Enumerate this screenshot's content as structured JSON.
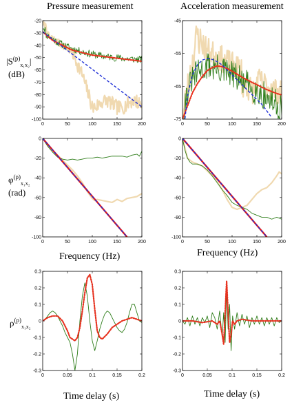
{
  "column_titles": [
    "Pressure measurement",
    "Acceleration measurement"
  ],
  "row_labels": {
    "row1_symbol": "|S",
    "row1_sup": "(p)",
    "row1_sub": "x₁x₂",
    "row1_close": "|",
    "row1_unit": "(dB)",
    "row2_symbol": "φ",
    "row2_sup": "(p)",
    "row2_sub": "x₁x₂",
    "row2_unit": "(rad)",
    "row3_symbol": "ρ",
    "row3_sup": "(p)",
    "row3_sub": "x₁x₂"
  },
  "colors": {
    "green": "#2e7d1a",
    "tan": "#f0d9b0",
    "blue": "#1f2fd6",
    "red": "#e51a1a",
    "red_dotted": "#e8321e"
  },
  "chart_data": [
    {
      "id": "p11",
      "type": "line",
      "xlim": [
        0,
        200
      ],
      "ylim": [
        -100,
        -20
      ],
      "xticks": [
        0,
        50,
        100,
        150,
        200
      ],
      "yticks": [
        -20,
        -30,
        -40,
        -50,
        -60,
        -70,
        -80,
        -90,
        -100
      ],
      "xlabel": "",
      "ylabel": "",
      "series": [
        {
          "style": "tan",
          "kind": "pressure_mag_tan"
        },
        {
          "style": "green",
          "kind": "pressure_mag_green"
        },
        {
          "style": "red_dotted",
          "x": [
            0,
            20,
            40,
            60,
            80,
            100,
            120,
            140,
            160,
            180,
            200
          ],
          "y": [
            -29,
            -36,
            -40,
            -44,
            -46,
            -48,
            -49,
            -50,
            -51,
            -52,
            -53
          ]
        },
        {
          "style": "blue_dashed",
          "x": [
            0,
            200
          ],
          "y": [
            -29,
            -90
          ]
        }
      ]
    },
    {
      "id": "p12",
      "type": "line",
      "xlim": [
        0,
        200
      ],
      "ylim": [
        -75,
        -45
      ],
      "xticks": [
        0,
        50,
        100,
        150,
        200
      ],
      "yticks": [
        -45,
        -55,
        -65,
        -75
      ],
      "xlabel": "",
      "ylabel": "",
      "series": [
        {
          "style": "tan",
          "kind": "accel_mag_tan"
        },
        {
          "style": "green",
          "kind": "accel_mag_green"
        },
        {
          "style": "red_dotted",
          "x": [
            0,
            10,
            20,
            30,
            40,
            50,
            60,
            70,
            80,
            90,
            100,
            110,
            120,
            130,
            140,
            150,
            160,
            170,
            180,
            190,
            200
          ],
          "y": [
            -75,
            -71,
            -67,
            -64.2,
            -62,
            -60.2,
            -59.3,
            -58.8,
            -59,
            -59.6,
            -60.4,
            -61.3,
            -62.2,
            -63,
            -63.8,
            -64.5,
            -65.3,
            -66,
            -66.6,
            -67.2,
            -67.6
          ]
        },
        {
          "style": "blue_dashed",
          "x": [
            0,
            5,
            10,
            20,
            30,
            40,
            50,
            60,
            70,
            80,
            90,
            100,
            120,
            140,
            160,
            170,
            180
          ],
          "y": [
            -83,
            -75,
            -68,
            -61.5,
            -58.5,
            -57,
            -56.5,
            -56.8,
            -57.5,
            -58.5,
            -60,
            -61.5,
            -64.5,
            -67.5,
            -70.5,
            -72.5,
            -74.5
          ]
        }
      ]
    },
    {
      "id": "p21",
      "type": "line",
      "xlim": [
        0,
        200
      ],
      "ylim": [
        -100,
        0
      ],
      "xticks": [
        0,
        50,
        100,
        150,
        200
      ],
      "yticks": [
        0,
        -20,
        -40,
        -60,
        -80,
        -100
      ],
      "xlabel": "Frequency (Hz)",
      "ylabel": "",
      "series": [
        {
          "style": "tan",
          "x": [
            0,
            10,
            20,
            30,
            40,
            50,
            60,
            70,
            80,
            90,
            100,
            105,
            110,
            120,
            130,
            140,
            150,
            160,
            170,
            180,
            190,
            200
          ],
          "y": [
            0,
            -6,
            -12,
            -17,
            -22,
            -27,
            -32,
            -38,
            -45,
            -54,
            -61,
            -63,
            -62,
            -63,
            -64,
            -65,
            -62,
            -64,
            -61,
            -60,
            -59,
            -56
          ]
        },
        {
          "style": "green",
          "x": [
            0,
            5,
            10,
            20,
            30,
            40,
            50,
            60,
            70,
            80,
            90,
            100,
            110,
            120,
            130,
            140,
            150,
            160,
            170,
            180,
            190,
            195,
            200
          ],
          "y": [
            0,
            -4,
            -8,
            -14,
            -19,
            -21,
            -22,
            -21,
            -22,
            -21,
            -20,
            -20,
            -19,
            -20,
            -19,
            -18,
            -18,
            -18,
            -19,
            -17,
            -16,
            -18,
            -13
          ]
        },
        {
          "style": "red_solid",
          "x": [
            0,
            170
          ],
          "y": [
            0,
            -100
          ]
        },
        {
          "style": "blue_dashed",
          "x": [
            0,
            170
          ],
          "y": [
            0,
            -100
          ]
        }
      ]
    },
    {
      "id": "p22",
      "type": "line",
      "xlim": [
        0,
        200
      ],
      "ylim": [
        -100,
        0
      ],
      "xticks": [
        0,
        50,
        100,
        150,
        200
      ],
      "yticks": [
        0,
        -20,
        -40,
        -60,
        -80,
        -100
      ],
      "xlabel": "Frequency (Hz)",
      "ylabel": "",
      "series": [
        {
          "style": "tan",
          "x": [
            0,
            5,
            10,
            15,
            20,
            30,
            40,
            50,
            60,
            70,
            80,
            90,
            100,
            110,
            120,
            130,
            140,
            150,
            160,
            170,
            180,
            190,
            195,
            200
          ],
          "y": [
            0,
            -10,
            -20,
            -22,
            -24,
            -26,
            -28,
            -33,
            -38,
            -44,
            -52,
            -62,
            -70,
            -72,
            -70,
            -68,
            -62,
            -56,
            -52,
            -50,
            -45,
            -38,
            -34,
            -36
          ]
        },
        {
          "style": "green",
          "x": [
            0,
            5,
            10,
            15,
            20,
            30,
            40,
            50,
            60,
            70,
            80,
            90,
            100,
            110,
            120,
            130,
            140,
            150,
            160,
            170,
            180,
            190,
            200
          ],
          "y": [
            0,
            -12,
            -20,
            -24,
            -26,
            -26,
            -28,
            -32,
            -38,
            -45,
            -52,
            -58,
            -65,
            -68,
            -70,
            -72,
            -76,
            -78,
            -80,
            -80,
            -82,
            -80,
            -82
          ]
        },
        {
          "style": "red_solid",
          "x": [
            0,
            170
          ],
          "y": [
            0,
            -100
          ]
        },
        {
          "style": "blue_dashed",
          "x": [
            0,
            170
          ],
          "y": [
            0,
            -100
          ]
        }
      ]
    },
    {
      "id": "p31",
      "type": "line",
      "xlim": [
        0,
        0.2
      ],
      "ylim": [
        -0.3,
        0.3
      ],
      "xticks": [
        0,
        0.05,
        0.1,
        0.15,
        0.2
      ],
      "yticks": [
        0.3,
        0.2,
        0.1,
        0,
        -0.1,
        -0.2,
        -0.3
      ],
      "xlabel": "Time delay (s)",
      "ylabel": "",
      "series": [
        {
          "style": "green",
          "x": [
            0,
            0.005,
            0.01,
            0.015,
            0.02,
            0.025,
            0.03,
            0.035,
            0.04,
            0.045,
            0.05,
            0.055,
            0.06,
            0.065,
            0.07,
            0.075,
            0.08,
            0.085,
            0.09,
            0.095,
            0.1,
            0.105,
            0.11,
            0.115,
            0.12,
            0.125,
            0.13,
            0.135,
            0.14,
            0.145,
            0.15,
            0.155,
            0.16,
            0.165,
            0.17,
            0.175,
            0.18,
            0.185,
            0.19,
            0.195,
            0.2
          ],
          "y": [
            0,
            0.01,
            0.03,
            0.05,
            0.06,
            0.05,
            0.03,
            0.0,
            -0.03,
            -0.07,
            -0.1,
            -0.13,
            -0.2,
            -0.3,
            -0.2,
            0.0,
            0.15,
            0.23,
            0.15,
            0.0,
            -0.12,
            -0.18,
            -0.12,
            -0.05,
            0.0,
            0.04,
            0.06,
            0.05,
            0.02,
            -0.01,
            -0.04,
            -0.06,
            -0.07,
            -0.05,
            -0.01,
            0.05,
            0.1,
            0.1,
            0.05,
            0.0,
            -0.01
          ]
        },
        {
          "style": "blue_dashed",
          "x": [
            0,
            0.01,
            0.02,
            0.03,
            0.04,
            0.05,
            0.055,
            0.06,
            0.065,
            0.07,
            0.075,
            0.08,
            0.085,
            0.09,
            0.095,
            0.1,
            0.105,
            0.11,
            0.115,
            0.12,
            0.13,
            0.14,
            0.15,
            0.16,
            0.17,
            0.18,
            0.19,
            0.2
          ],
          "y": [
            0.0,
            0.02,
            0.03,
            0.03,
            0.0,
            -0.06,
            -0.1,
            -0.11,
            -0.12,
            -0.1,
            -0.04,
            0.06,
            0.17,
            0.26,
            0.28,
            0.22,
            0.07,
            -0.06,
            -0.1,
            -0.11,
            -0.08,
            -0.04,
            -0.02,
            0.0,
            0.01,
            0.02,
            0.01,
            0.0
          ]
        },
        {
          "style": "red_dotted",
          "x": [
            0,
            0.01,
            0.02,
            0.03,
            0.04,
            0.05,
            0.055,
            0.06,
            0.065,
            0.07,
            0.075,
            0.08,
            0.085,
            0.09,
            0.095,
            0.1,
            0.105,
            0.11,
            0.115,
            0.12,
            0.13,
            0.14,
            0.15,
            0.16,
            0.17,
            0.18,
            0.19,
            0.2
          ],
          "y": [
            0.0,
            0.02,
            0.03,
            0.03,
            0.0,
            -0.06,
            -0.1,
            -0.11,
            -0.12,
            -0.1,
            -0.04,
            0.06,
            0.17,
            0.26,
            0.28,
            0.22,
            0.07,
            -0.06,
            -0.1,
            -0.11,
            -0.08,
            -0.04,
            -0.02,
            0.0,
            0.01,
            0.02,
            0.01,
            0.0
          ]
        }
      ]
    },
    {
      "id": "p32",
      "type": "line",
      "xlim": [
        0,
        0.2
      ],
      "ylim": [
        -0.3,
        0.3
      ],
      "xticks": [
        0,
        0.05,
        0.1,
        0.15,
        0.2
      ],
      "yticks": [
        0.3,
        0.2,
        0.1,
        0,
        -0.1,
        -0.2,
        -0.3
      ],
      "xlabel": "Time delay (s)",
      "ylabel": "",
      "series": [
        {
          "style": "green",
          "x": [
            0,
            0.005,
            0.01,
            0.015,
            0.02,
            0.025,
            0.03,
            0.035,
            0.04,
            0.045,
            0.05,
            0.055,
            0.06,
            0.065,
            0.07,
            0.075,
            0.08,
            0.083,
            0.086,
            0.089,
            0.092,
            0.095,
            0.098,
            0.101,
            0.105,
            0.11,
            0.115,
            0.12,
            0.125,
            0.13,
            0.135,
            0.14,
            0.145,
            0.15,
            0.155,
            0.16,
            0.165,
            0.17,
            0.175,
            0.18,
            0.185,
            0.19,
            0.195,
            0.2
          ],
          "y": [
            0,
            -0.02,
            0.02,
            -0.03,
            0.03,
            -0.02,
            0.02,
            -0.03,
            0.02,
            -0.01,
            0.03,
            -0.04,
            0.05,
            0.02,
            -0.05,
            0.06,
            -0.1,
            0.05,
            -0.13,
            0.18,
            -0.05,
            0.1,
            -0.18,
            0.03,
            -0.05,
            0.05,
            -0.03,
            0.04,
            -0.02,
            0.03,
            -0.04,
            0.02,
            -0.02,
            0.03,
            -0.02,
            0.02,
            -0.03,
            0.02,
            -0.02,
            0.02,
            -0.03,
            0.02,
            -0.01,
            0.0
          ]
        },
        {
          "style": "blue_dashed",
          "x": [
            0,
            0.02,
            0.04,
            0.06,
            0.07,
            0.075,
            0.08,
            0.083,
            0.086,
            0.089,
            0.092,
            0.095,
            0.098,
            0.101,
            0.105,
            0.11,
            0.12,
            0.14,
            0.16,
            0.18,
            0.2
          ],
          "y": [
            0,
            0.0,
            -0.01,
            0.0,
            -0.02,
            0.0,
            -0.08,
            -0.14,
            0.05,
            0.24,
            0.05,
            -0.13,
            -0.08,
            0.0,
            -0.02,
            0.0,
            0.01,
            0.0,
            0.0,
            0.0,
            0.0
          ]
        },
        {
          "style": "red_dotted",
          "x": [
            0,
            0.02,
            0.04,
            0.06,
            0.07,
            0.075,
            0.08,
            0.083,
            0.086,
            0.089,
            0.092,
            0.095,
            0.098,
            0.101,
            0.105,
            0.11,
            0.12,
            0.14,
            0.16,
            0.18,
            0.2
          ],
          "y": [
            0,
            0.0,
            -0.01,
            0.0,
            -0.02,
            0.0,
            -0.08,
            -0.14,
            0.05,
            0.24,
            0.05,
            -0.13,
            -0.08,
            0.0,
            -0.02,
            0.0,
            0.01,
            0.0,
            0.0,
            0.0,
            0.0
          ]
        }
      ]
    }
  ]
}
